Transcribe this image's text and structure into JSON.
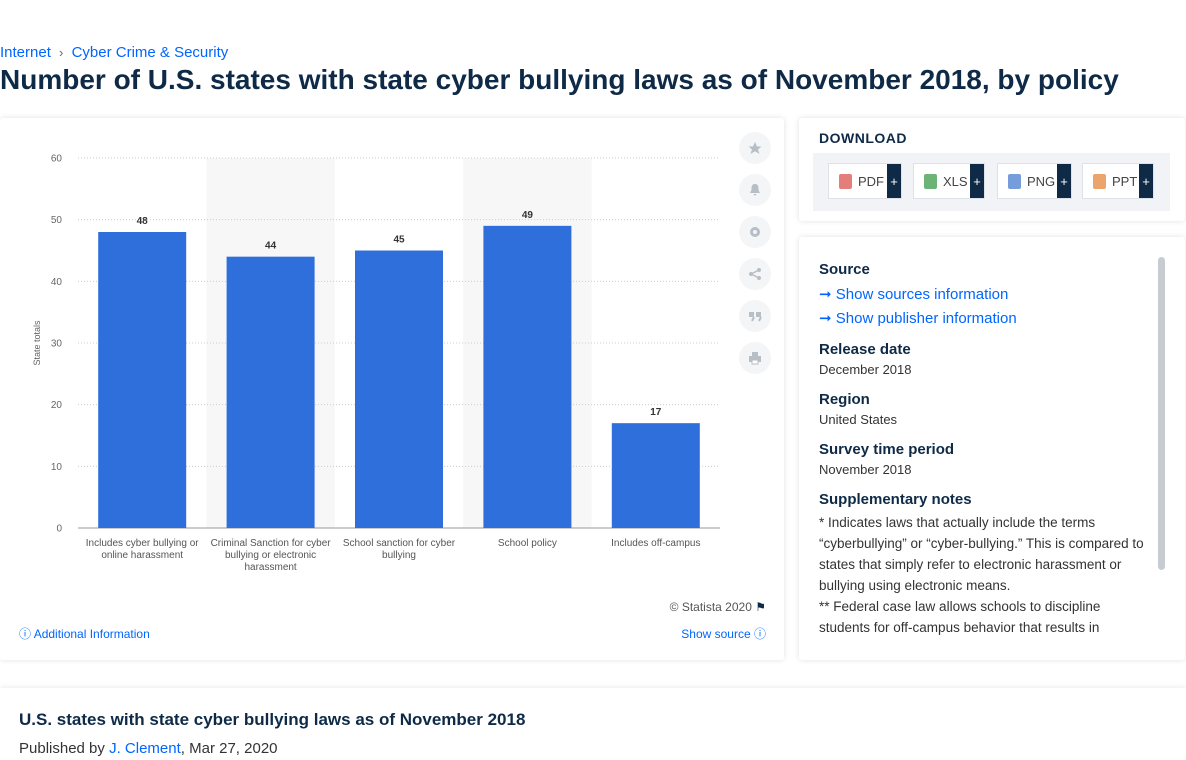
{
  "breadcrumb": [
    "Internet",
    "Cyber Crime & Security"
  ],
  "breadcrumb_separator": "›",
  "page_title": "Number of U.S. states with state cyber bullying laws as of November 2018, by policy",
  "chart_data": {
    "type": "bar",
    "categories": [
      "Includes cyber bullying or online harassment",
      "Criminal Sanction for cyber bullying or electronic harassment",
      "School sanction for cyber bullying",
      "School policy",
      "Includes off-campus"
    ],
    "values": [
      48,
      44,
      45,
      49,
      17
    ],
    "color": "#2f6fdb",
    "y_label": "State totals",
    "ylim": [
      0,
      60
    ],
    "yticks": [
      0,
      10,
      20,
      30,
      40,
      50,
      60
    ],
    "grid": true
  },
  "chart_footer": {
    "copyright": "© Statista 2020",
    "additional": "Additional Information",
    "show_source": "Show source"
  },
  "download": {
    "title": "DOWNLOAD",
    "plus": "+",
    "buttons": [
      "PDF",
      "XLS",
      "PNG",
      "PPT"
    ]
  },
  "info": {
    "source_title": "Source",
    "links": [
      "Show sources information",
      "Show publisher information"
    ],
    "fields": [
      {
        "title": "Release date",
        "value": "December 2018"
      },
      {
        "title": "Region",
        "value": "United States"
      },
      {
        "title": "Survey time period",
        "value": "November 2018"
      }
    ],
    "notes_title": "Supplementary notes",
    "notes": [
      "* Indicates laws that actually include the terms “cyberbullying” or “cyber-bullying.” This is compared to states that simply refer to electronic harassment or bullying using electronic means.",
      "** Federal case law allows schools to discipline students for off-campus behavior that results in"
    ]
  },
  "footer": {
    "title": "U.S. states with state cyber bullying laws as of November 2018",
    "published_prefix": "Published by",
    "author": "J. Clement",
    "date_suffix": ", Mar 27, 2020"
  }
}
